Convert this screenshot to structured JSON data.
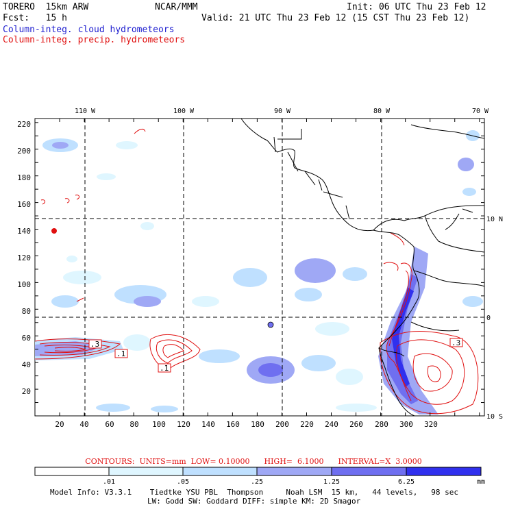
{
  "header": {
    "model": "TORERO  15km ARW",
    "org": "NCAR/MMM",
    "init": "Init: 06 UTC Thu 23 Feb 12",
    "fcst": "Fcst:   15 h",
    "valid": "Valid: 21 UTC Thu 23 Feb 12 (15 CST Thu 23 Feb 12)",
    "field_cloud": "Column-integ. cloud hydrometeors",
    "field_precip": "Column-integ. precip. hydrometeors"
  },
  "colors": {
    "cloud_label": "#2020d0",
    "precip": "#e01010",
    "band1": "#dff6ff",
    "band2": "#bfe0ff",
    "band3": "#9fa8f5",
    "band4": "#6f6ff0",
    "band5": "#3030ee"
  },
  "axes": {
    "top_lon": [
      "110 W",
      "100 W",
      "90 W",
      "80 W",
      "70 W"
    ],
    "right_lat": [
      "10 N",
      "0",
      "10 S"
    ],
    "x_ticks": [
      "20",
      "40",
      "60",
      "80",
      "100",
      "120",
      "140",
      "160",
      "180",
      "200",
      "220",
      "240",
      "260",
      "280",
      "300",
      "320"
    ],
    "y_ticks": [
      "220",
      "200",
      "180",
      "160",
      "140",
      "120",
      "100",
      "80",
      "60",
      "40",
      "20"
    ]
  },
  "contour_labels": [
    ".3",
    ".1",
    ".1",
    ".3"
  ],
  "contours_info": "CONTOURS:  UNITS=mm  LOW= 0.10000      HIGH=  6.1000      INTERVAL=X  3.0000",
  "colorbar": {
    "ticks": [
      ".01",
      ".05",
      ".25",
      "1.25",
      "6.25"
    ],
    "units": "mm"
  },
  "footer": {
    "line1": "Model Info: V3.3.1    Tiedtke YSU PBL  Thompson     Noah LSM  15 km,   44 levels,   98 sec",
    "line2": "LW: Godd SW: Goddard DIFF: simple KM: 2D Smagor"
  }
}
